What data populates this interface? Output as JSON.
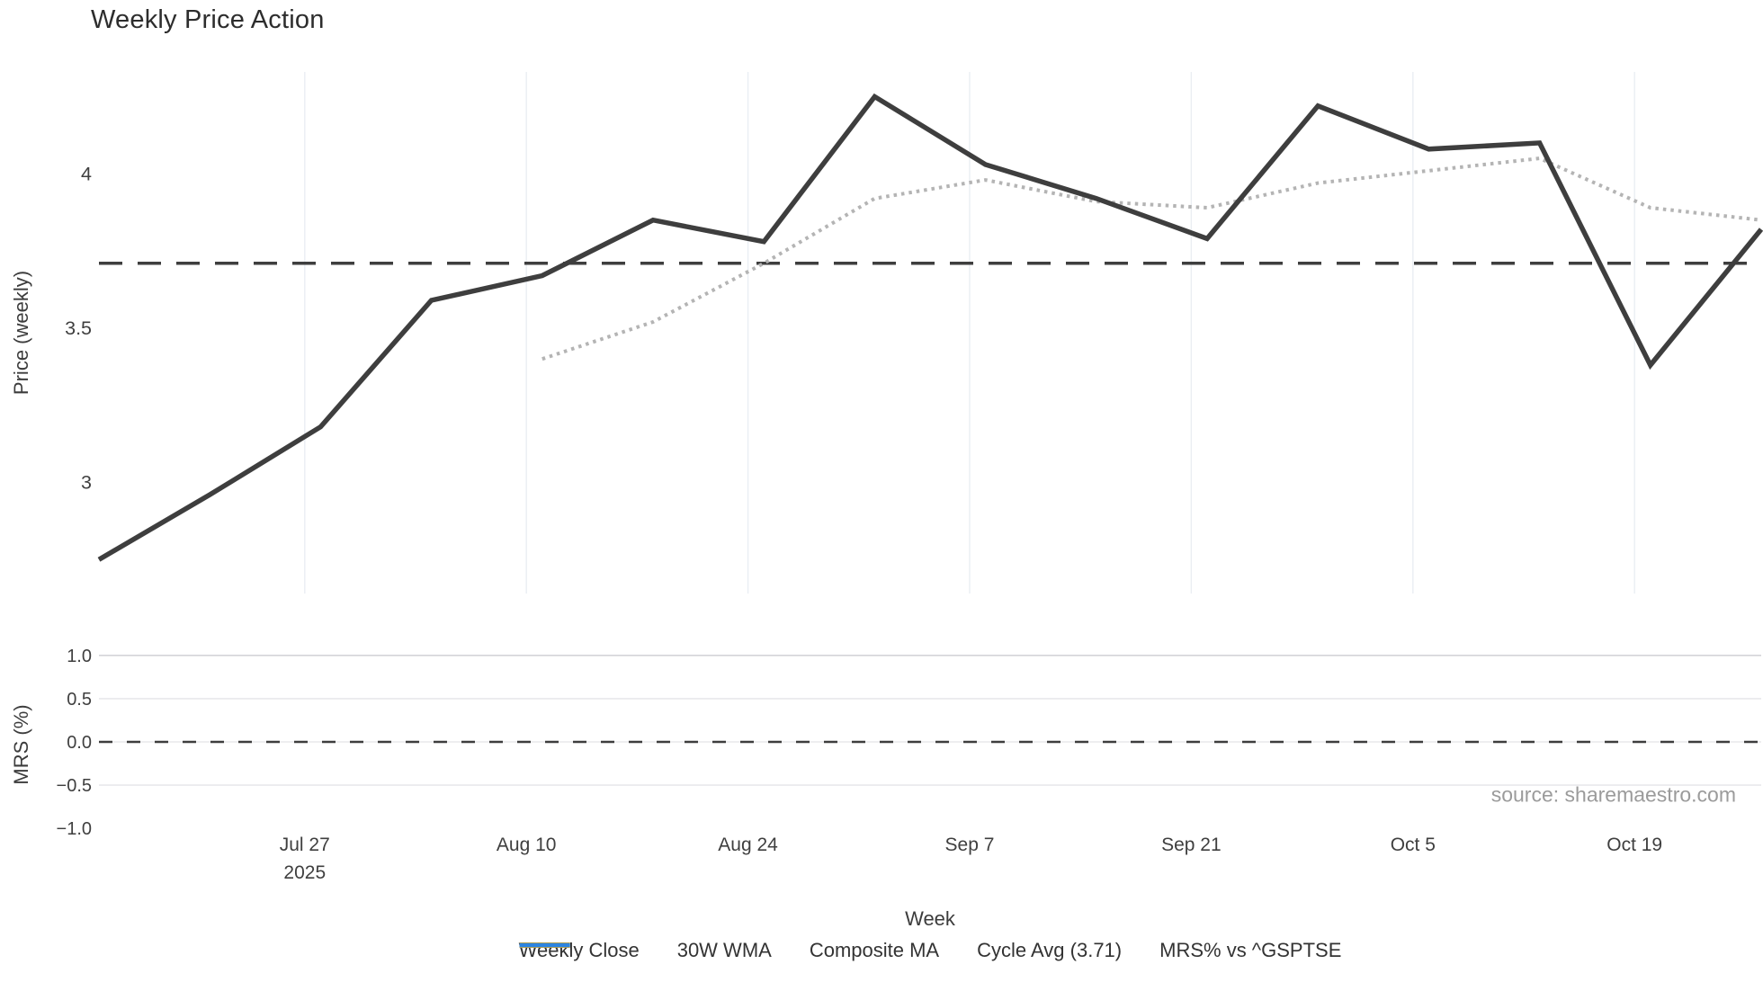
{
  "title": "Weekly Price Action",
  "source_note": "source: sharemaestro.com",
  "colors": {
    "weekly_close": "#3e3e3e",
    "wma_30w": "#d6a41e",
    "composite_ma": "#b4b4b4",
    "cycle_avg": "#3e3e3e",
    "mrs": "#2d85e0",
    "vgrid": "#eaeef3",
    "hgrid": "#e8e8ec",
    "hgrid_dark": "#d4d4d8",
    "tick_text": "#3f3f3f",
    "source_text": "#9b9b9b"
  },
  "chart_data": [
    {
      "type": "line",
      "subplot": "price",
      "title": "Weekly Price Action",
      "xlabel": "Week",
      "ylabel": "Price (weekly)",
      "grid": "vertical-only",
      "legend_position": "bottom-center",
      "x_weeks": [
        "Jul 14",
        "Jul 21",
        "Jul 28",
        "Aug 4",
        "Aug 11",
        "Aug 18",
        "Aug 25",
        "Sep 1",
        "Sep 8",
        "Sep 15",
        "Sep 22",
        "Sep 29",
        "Oct 6",
        "Oct 13",
        "Oct 20",
        "Oct 27"
      ],
      "x_ticks": [
        {
          "label": "Jul 27",
          "sublabel": "2025",
          "week_pos": 1.857
        },
        {
          "label": "Aug 10",
          "sublabel": "",
          "week_pos": 3.857
        },
        {
          "label": "Aug 24",
          "sublabel": "",
          "week_pos": 5.857
        },
        {
          "label": "Sep 7",
          "sublabel": "",
          "week_pos": 7.857
        },
        {
          "label": "Sep 21",
          "sublabel": "",
          "week_pos": 9.857
        },
        {
          "label": "Oct 5",
          "sublabel": "",
          "week_pos": 11.857
        },
        {
          "label": "Oct 19",
          "sublabel": "",
          "week_pos": 13.857
        }
      ],
      "y_ticks": [
        {
          "label": "3",
          "value": 3
        },
        {
          "label": "3.5",
          "value": 3.5
        },
        {
          "label": "4",
          "value": 4
        }
      ],
      "ylim": [
        2.64,
        4.33
      ],
      "series": [
        {
          "name": "Weekly Close",
          "style": "solid",
          "color_key": "weekly_close",
          "width": 5.5,
          "values": [
            2.75,
            2.96,
            3.18,
            3.59,
            3.67,
            3.85,
            3.78,
            4.25,
            4.03,
            3.92,
            3.79,
            4.22,
            4.08,
            4.1,
            3.38,
            3.82
          ]
        },
        {
          "name": "30W WMA",
          "style": "solid",
          "color_key": "wma_30w",
          "width": 5,
          "values": []
        },
        {
          "name": "Composite MA",
          "style": "dotted",
          "color_key": "composite_ma",
          "width": 4,
          "values": [
            null,
            null,
            null,
            null,
            3.4,
            3.52,
            3.71,
            3.92,
            3.98,
            3.91,
            3.89,
            3.97,
            4.01,
            4.05,
            3.89,
            3.85
          ]
        },
        {
          "name": "Cycle Avg (3.71)",
          "style": "dashed",
          "color_key": "cycle_avg",
          "width": 3.5,
          "hline": 3.71
        }
      ]
    },
    {
      "type": "line",
      "subplot": "mrs",
      "ylabel": "MRS (%)",
      "grid": "horizontal-only",
      "y_ticks": [
        {
          "label": "1.0",
          "value": 1.0
        },
        {
          "label": "0.5",
          "value": 0.5
        },
        {
          "label": "0.0",
          "value": 0.0
        },
        {
          "label": "−0.5",
          "value": -0.5
        },
        {
          "label": "−1.0",
          "value": -1.0
        }
      ],
      "grid_vals": [
        1.0,
        0.5,
        0.0,
        -0.5
      ],
      "ylim": [
        -1.3,
        1.3
      ],
      "series": [
        {
          "name": "MRS% vs ^GSPTSE",
          "style": "solid",
          "color_key": "mrs",
          "width": 4,
          "values": []
        },
        {
          "name": "Zero line",
          "style": "dashed",
          "color_key": "cycle_avg",
          "width": 2.5,
          "hline": 0.0
        }
      ]
    }
  ],
  "legend": [
    {
      "label": "Weekly Close",
      "swatch": "solid",
      "color_key": "weekly_close",
      "width": 6
    },
    {
      "label": "30W WMA",
      "swatch": "solid",
      "color_key": "wma_30w",
      "width": 6
    },
    {
      "label": "Composite MA",
      "swatch": "dotted",
      "color_key": "composite_ma",
      "width": 4.5
    },
    {
      "label": "Cycle Avg (3.71)",
      "swatch": "dashed",
      "color_key": "cycle_avg",
      "width": 3.5
    },
    {
      "label": "MRS% vs ^GSPTSE",
      "swatch": "solid",
      "color_key": "mrs",
      "width": 4.5
    }
  ]
}
